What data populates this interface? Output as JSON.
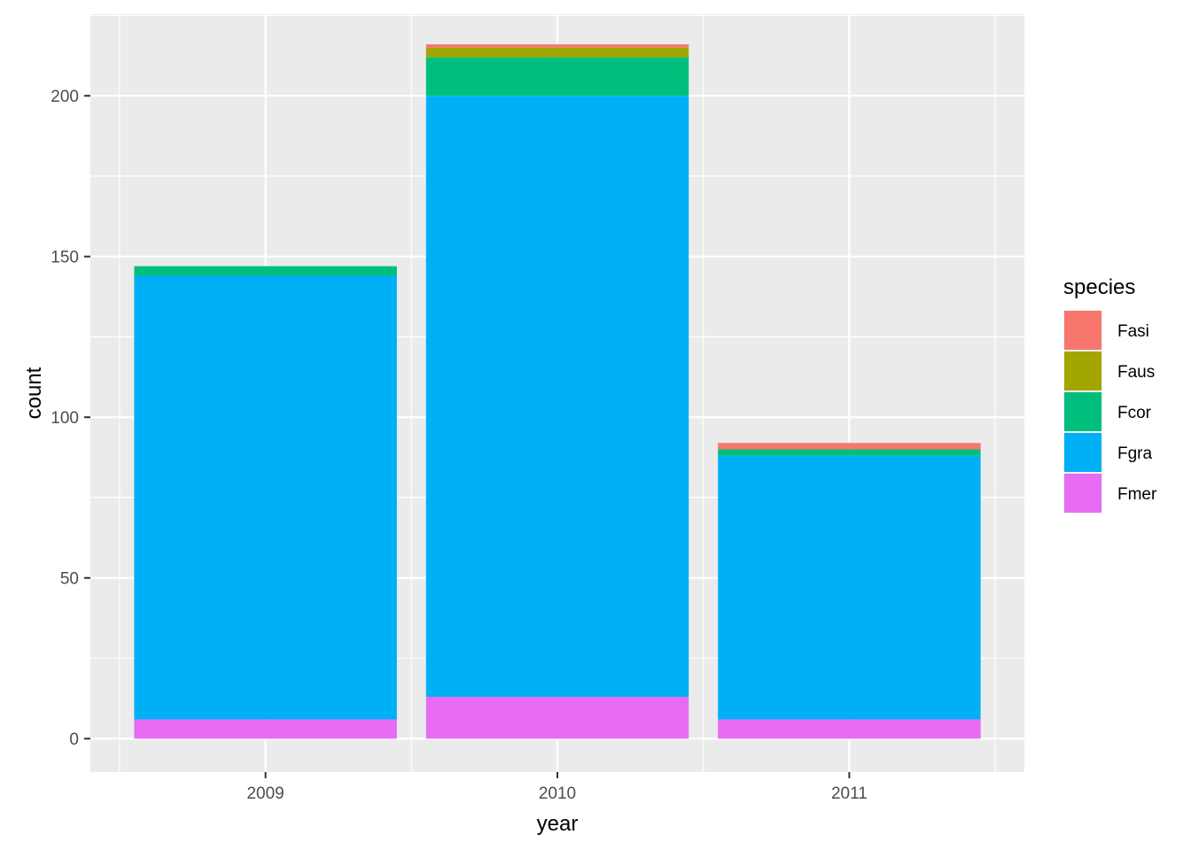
{
  "chart_data": {
    "type": "bar",
    "stacked": true,
    "title": "",
    "xlabel": "year",
    "ylabel": "count",
    "categories": [
      "2009",
      "2010",
      "2011"
    ],
    "ylim": [
      -10.4,
      225.4
    ],
    "yticks": [
      0,
      50,
      100,
      150,
      200
    ],
    "grid": true,
    "legend_position": "right",
    "legend_title": "species",
    "series": [
      {
        "name": "Fasi",
        "color": "#F8766D",
        "values": [
          0,
          1,
          2
        ]
      },
      {
        "name": "Faus",
        "color": "#A3A500",
        "values": [
          0,
          3,
          0
        ]
      },
      {
        "name": "Fcor",
        "color": "#00BF7D",
        "values": [
          3,
          12,
          2
        ]
      },
      {
        "name": "Fgra",
        "color": "#00B0F6",
        "values": [
          138,
          187,
          82
        ]
      },
      {
        "name": "Fmer",
        "color": "#E76BF3",
        "values": [
          6,
          13,
          6
        ]
      }
    ]
  }
}
